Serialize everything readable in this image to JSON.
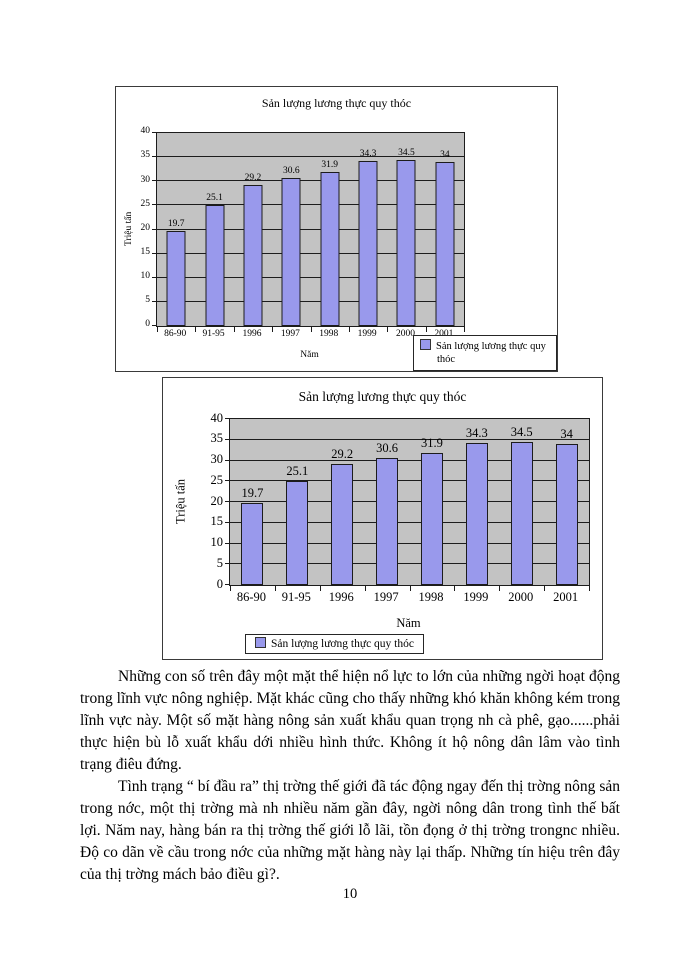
{
  "page_number": "10",
  "paragraphs": [
    "Những con số trên đây một mặt thể hiện nổ lực to lớn của những ngời hoạt động trong lĩnh vực nông nghiệp. Mặt khác cũng cho thấy những khó khăn không kém trong lĩnh vực này. Một số mặt hàng nông sản xuất khẩu quan trọng nh  cà phê, gạo......phải thực hiện bù lỗ xuất khẩu dới  nhiều hình thức. Không ít hộ nông dân lâm vào tình trạng điêu đứng.",
    "Tình trạng “ bí đầu ra” thị trờng  thế giới đã tác động ngay đến thị trờng nông sản trong nớc,  một thị trờng  mà nh  nhiều năm gần đây, ngời  nông dân trong tình thế bất lợi. Năm nay, hàng bán ra thị trờng  thế giới lỗ lãi, tồn đọng ở thị trờng  trongnc nhiều. Độ co dãn về cầu trong nớc  của những mặt hàng này lại thấp. Những tín hiệu trên đây của thị trờng  mách bảo điều gì?."
  ],
  "chart_data": [
    {
      "type": "bar",
      "title": "Sản lượng lương thực quy thóc",
      "xlabel": "Năm",
      "ylabel": "Triệu tấn",
      "legend": [
        "Sản lượng lương thực quy thóc"
      ],
      "legend_position": "bottom-right-overlay",
      "categories": [
        "86-90",
        "91-95",
        "1996",
        "1997",
        "1998",
        "1999",
        "2000",
        "2001"
      ],
      "values": [
        19.7,
        25.1,
        29.2,
        30.6,
        31.9,
        34.3,
        34.5,
        34
      ],
      "ylim": [
        0,
        40
      ],
      "y_ticks": [
        0,
        5,
        10,
        15,
        20,
        25,
        30,
        35,
        40
      ],
      "y_tick_step": 5,
      "grid": true,
      "data_labels": true,
      "bar_color": "#9999ec",
      "plot_bg_color": "#c3c3c3"
    },
    {
      "type": "bar",
      "title": "Sản lượng lương thực quy thóc",
      "xlabel": "Năm",
      "ylabel": "Triệu tấn",
      "legend": [
        "Sản lượng lương thực quy thóc"
      ],
      "legend_position": "bottom-center",
      "categories": [
        "86-90",
        "91-95",
        "1996",
        "1997",
        "1998",
        "1999",
        "2000",
        "2001"
      ],
      "values": [
        19.7,
        25.1,
        29.2,
        30.6,
        31.9,
        34.3,
        34.5,
        34
      ],
      "ylim": [
        0,
        40
      ],
      "y_ticks": [
        0,
        5,
        10,
        15,
        20,
        25,
        30,
        35,
        40
      ],
      "y_tick_step": 5,
      "grid": true,
      "data_labels": true,
      "bar_color": "#9999ec",
      "plot_bg_color": "#c3c3c3"
    }
  ]
}
